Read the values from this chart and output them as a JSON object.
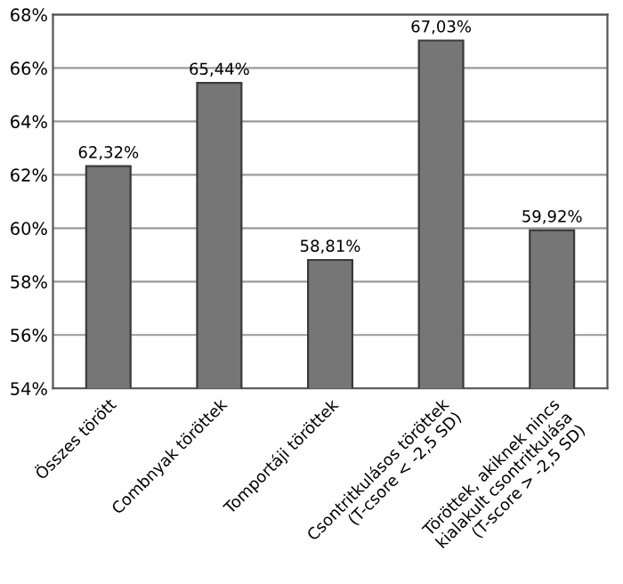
{
  "chart_data": {
    "type": "bar",
    "categories": [
      "Összes törött",
      "Combnyak töröttek",
      "Tomportáji töröttek",
      "Csontritkulásos töröttek\n(T-csore < -2,5 SD)",
      "Töröttek, akiknek nincs\nkialakult csontritkulása\n(T-score > -2,5 SD)"
    ],
    "values": [
      62.32,
      65.44,
      58.81,
      67.03,
      59.92
    ],
    "value_labels": [
      "62,32%",
      "65,44%",
      "58,81%",
      "67,03%",
      "59,92%"
    ],
    "color": "#767676",
    "ylim": [
      54,
      68
    ],
    "yticks": [
      {
        "value": 54,
        "label": "54%"
      },
      {
        "value": 56,
        "label": "56%"
      },
      {
        "value": 58,
        "label": "58%"
      },
      {
        "value": 60,
        "label": "60%"
      },
      {
        "value": 62,
        "label": "62%"
      },
      {
        "value": 64,
        "label": "64%"
      },
      {
        "value": 66,
        "label": "66%"
      },
      {
        "value": 68,
        "label": "68%"
      }
    ],
    "grid": "y"
  }
}
